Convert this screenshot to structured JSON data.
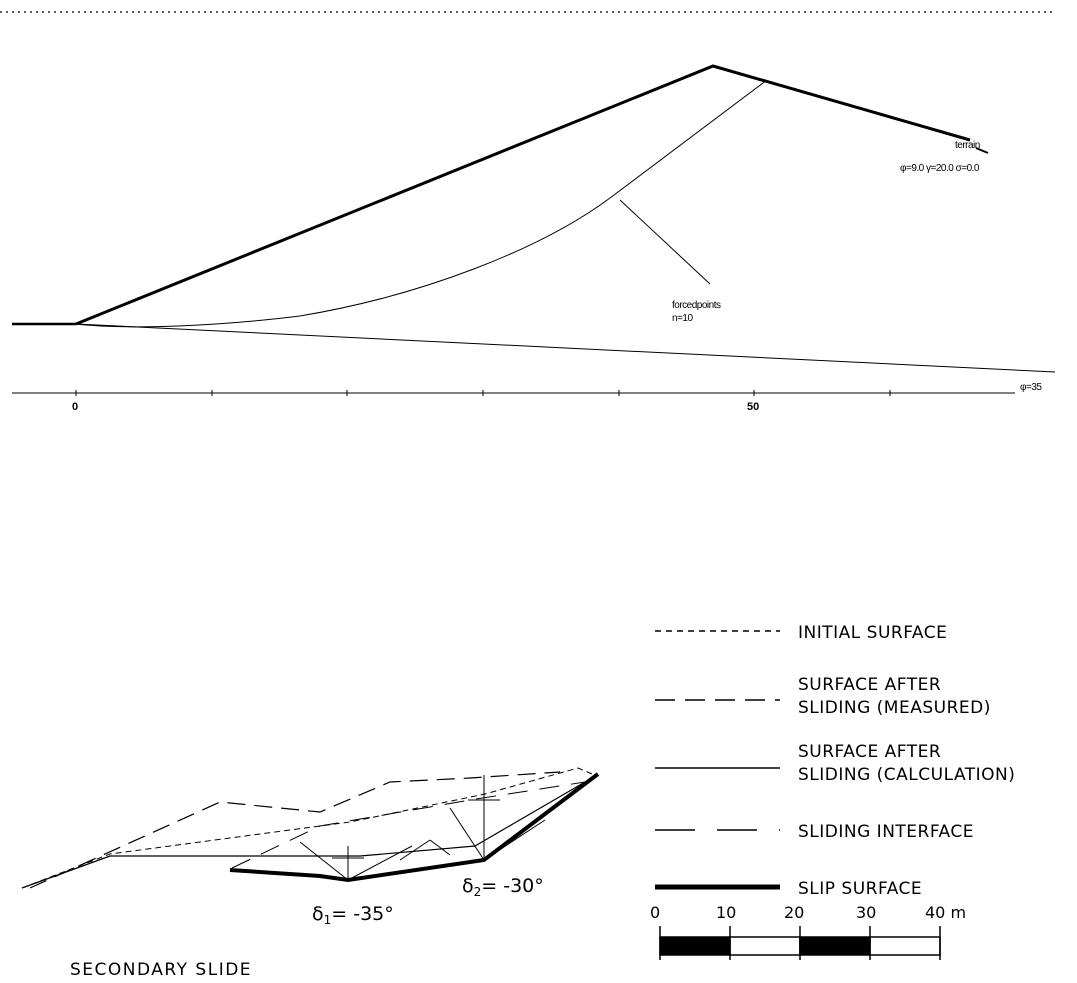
{
  "top_section": {
    "terrain_label": "terrain",
    "material_label": "φ=9.0 γ=20.0 σ=0.0",
    "forcedpoints_label_1": "forcedpoints",
    "forcedpoints_label_2": "n=10",
    "axis_label_phi": "φ=35",
    "axis_ticks": [
      "0",
      "50"
    ]
  },
  "legend": {
    "items": [
      {
        "id": "initial",
        "lines": [
          "INITIAL SURFACE"
        ]
      },
      {
        "id": "measured",
        "lines": [
          "SURFACE AFTER",
          "SLIDING (MEASURED)"
        ]
      },
      {
        "id": "calculation",
        "lines": [
          "SURFACE AFTER",
          "SLIDING (CALCULATION)"
        ]
      },
      {
        "id": "interface",
        "lines": [
          "SLIDING INTERFACE"
        ]
      },
      {
        "id": "slip",
        "lines": [
          "SLIP SURFACE"
        ]
      }
    ]
  },
  "angles": {
    "delta1_symbol": "δ",
    "delta1_sub": "1",
    "delta1_value": "= -35°",
    "delta2_symbol": "δ",
    "delta2_sub": "2",
    "delta2_value": "= -30°"
  },
  "scale_bar": {
    "labels": [
      "0",
      "10",
      "20",
      "30",
      "40 m"
    ]
  },
  "caption": "SECONDARY SLIDE"
}
